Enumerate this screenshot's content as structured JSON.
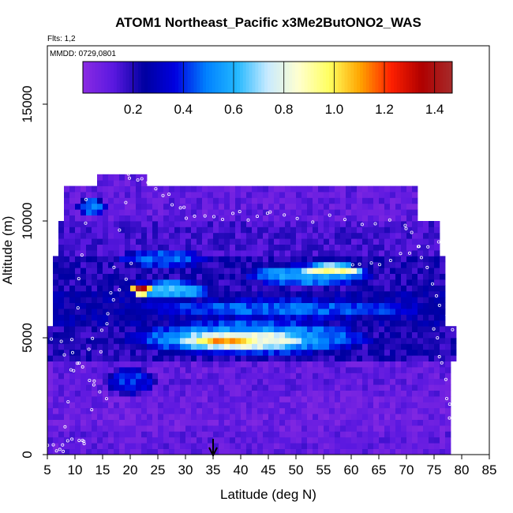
{
  "chart_data": {
    "type": "heatmap",
    "title": "ATOM1 Northeast_Pacific x3Me2ButONO2_WAS",
    "flights_label": "Flts: 1,2",
    "mmdd_label": "MMDD: 0729,0801",
    "xlabel": "Latitude (deg N)",
    "ylabel": "Altitude (m)",
    "xlim": [
      5,
      85
    ],
    "ylim": [
      0,
      17500
    ],
    "x_ticks": [
      5,
      10,
      15,
      20,
      25,
      30,
      35,
      40,
      45,
      50,
      55,
      60,
      65,
      70,
      75,
      80,
      85
    ],
    "y_ticks": [
      0,
      5000,
      10000,
      15000
    ],
    "colorbar": {
      "range": [
        0,
        1.47
      ],
      "ticks": [
        0.2,
        0.4,
        0.6,
        0.8,
        1.0,
        1.2,
        1.4
      ],
      "tick_labels": [
        "0.2",
        "0.4",
        "0.6",
        "0.8",
        "1.0",
        "1.2",
        "1.4"
      ],
      "palette": [
        "#8a2be2",
        "#5a18e0",
        "#0000a0",
        "#0000e0",
        "#0080ff",
        "#22b8ff",
        "#c8eaff",
        "#ffffd0",
        "#ffff60",
        "#ffa500",
        "#ff2000",
        "#b00000",
        "#a52a2a"
      ]
    },
    "arrow_marker_latitude": 35,
    "layers": [
      {
        "alt": [
          0,
          1000
        ],
        "lat": [
          5,
          78
        ],
        "value": 0.1
      },
      {
        "alt": [
          1000,
          2500
        ],
        "lat": [
          5,
          78
        ],
        "value": 0.08
      },
      {
        "alt": [
          2500,
          4000
        ],
        "lat": [
          5,
          78
        ],
        "value": 0.1
      },
      {
        "alt": [
          4000,
          5500
        ],
        "lat": [
          5,
          79
        ],
        "value": 0.2
      },
      {
        "alt": [
          5500,
          7000
        ],
        "lat": [
          6,
          77
        ],
        "value": 0.25
      },
      {
        "alt": [
          7000,
          8500
        ],
        "lat": [
          6,
          77
        ],
        "value": 0.2
      },
      {
        "alt": [
          8500,
          10000
        ],
        "lat": [
          7,
          76
        ],
        "value": 0.15
      },
      {
        "alt": [
          10000,
          11500
        ],
        "lat": [
          8,
          72
        ],
        "value": 0.1
      },
      {
        "alt": [
          11500,
          12000
        ],
        "lat": [
          14,
          23
        ],
        "value": 0.1
      }
    ],
    "features": [
      {
        "lat": [
          18,
          65
        ],
        "alt": [
          4200,
          5800
        ],
        "value": 0.55
      },
      {
        "lat": [
          25,
          55
        ],
        "alt": [
          4400,
          5400
        ],
        "value": 0.85
      },
      {
        "lat": [
          30,
          45
        ],
        "alt": [
          4600,
          5100
        ],
        "value": 1.1
      },
      {
        "lat": [
          20,
          75
        ],
        "alt": [
          5800,
          6700
        ],
        "value": 0.45
      },
      {
        "lat": [
          20,
          35
        ],
        "alt": [
          6600,
          7500
        ],
        "value": 0.6
      },
      {
        "lat": [
          20,
          24
        ],
        "alt": [
          6800,
          7400
        ],
        "value": 1.4
      },
      {
        "lat": [
          40,
          65
        ],
        "alt": [
          7200,
          8200
        ],
        "value": 0.55
      },
      {
        "lat": [
          50,
          63
        ],
        "alt": [
          7600,
          8200
        ],
        "value": 0.9
      },
      {
        "lat": [
          17,
          35
        ],
        "alt": [
          8000,
          8800
        ],
        "value": 0.45
      },
      {
        "lat": [
          15,
          25
        ],
        "alt": [
          2500,
          3800
        ],
        "value": 0.4
      },
      {
        "lat": [
          10,
          16
        ],
        "alt": [
          10200,
          11000
        ],
        "value": 0.5
      }
    ]
  }
}
